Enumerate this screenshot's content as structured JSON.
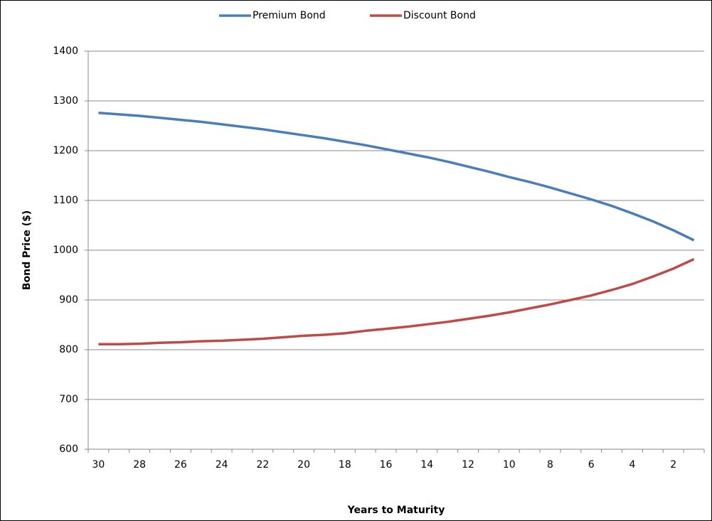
{
  "chart_data": {
    "type": "line",
    "x_label": "Years to Maturity",
    "y_label": "Bond Price ($)",
    "categories": [
      "30",
      null,
      "28",
      null,
      "26",
      null,
      "24",
      null,
      "22",
      null,
      "20",
      null,
      "18",
      null,
      "16",
      null,
      "14",
      null,
      "12",
      null,
      "10",
      null,
      "8",
      null,
      "6",
      null,
      "4",
      null,
      "2",
      null
    ],
    "series": [
      {
        "name": "Premium Bond",
        "color": "#4a7ebb",
        "values": [
          1276,
          1273,
          1270,
          1266,
          1262,
          1258,
          1253,
          1248,
          1243,
          1237,
          1231,
          1225,
          1218,
          1211,
          1203,
          1195,
          1187,
          1178,
          1168,
          1158,
          1147,
          1137,
          1126,
          1114,
          1102,
          1089,
          1074,
          1058,
          1040,
          1020
        ]
      },
      {
        "name": "Discount Bond",
        "color": "#be4b48",
        "values": [
          811,
          811,
          812,
          814,
          815,
          817,
          818,
          820,
          822,
          825,
          828,
          830,
          833,
          838,
          842,
          846,
          851,
          856,
          862,
          868,
          875,
          883,
          891,
          900,
          909,
          920,
          932,
          947,
          963,
          982
        ]
      }
    ],
    "ylim": [
      600,
      1400
    ],
    "yticks": [
      600,
      700,
      800,
      900,
      1000,
      1100,
      1200,
      1300,
      1400
    ],
    "grid": true,
    "legend": "top"
  }
}
